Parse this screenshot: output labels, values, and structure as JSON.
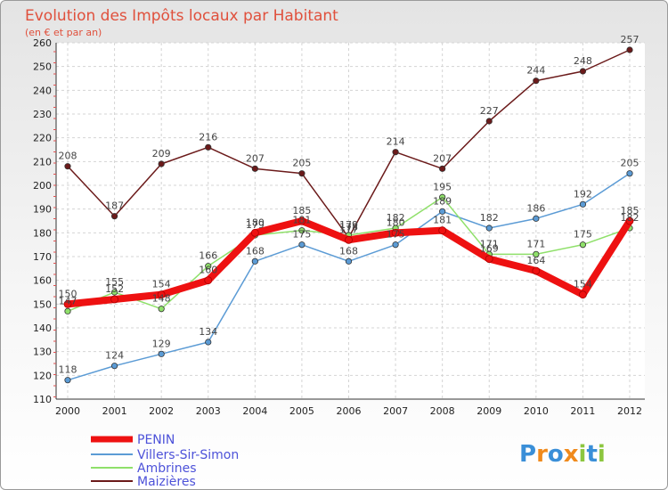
{
  "chart_data": {
    "type": "line",
    "title": "Evolution des Impôts locaux par Habitant",
    "subtitle": "(en € et par an)",
    "xlabel": "",
    "ylabel": "",
    "categories": [
      "2000",
      "2001",
      "2002",
      "2003",
      "2004",
      "2005",
      "2006",
      "2007",
      "2008",
      "2009",
      "2010",
      "2011",
      "2012"
    ],
    "ylim": [
      110,
      260
    ],
    "yticks": [
      110,
      120,
      130,
      140,
      150,
      160,
      170,
      180,
      190,
      200,
      210,
      220,
      230,
      240,
      250,
      260
    ],
    "series": [
      {
        "name": "Maizières",
        "color": "#6b1a1a",
        "values": [
          208,
          187,
          209,
          216,
          207,
          205,
          178,
          214,
          207,
          227,
          244,
          248,
          257
        ]
      },
      {
        "name": "Villers-Sir-Simon",
        "color": "#5b9bd5",
        "values": [
          118,
          124,
          129,
          134,
          168,
          175,
          168,
          175,
          189,
          182,
          186,
          192,
          205
        ]
      },
      {
        "name": "Ambrines",
        "color": "#8fe06a",
        "values": [
          147,
          155,
          148,
          166,
          179,
          181,
          179,
          182,
          195,
          171,
          171,
          175,
          182
        ]
      },
      {
        "name": "PENIN",
        "color": "#ee1111",
        "values": [
          150,
          152,
          154,
          160,
          180,
          185,
          177,
          180,
          181,
          169,
          164,
          154,
          185
        ]
      }
    ],
    "legend": [
      "PENIN",
      "Villers-Sir-Simon",
      "Ambrines",
      "Maizières"
    ],
    "legend_position": "bottom-left"
  },
  "logo": {
    "letters": [
      "P",
      "r",
      "o",
      "x",
      "i",
      "t",
      "i"
    ],
    "colors": [
      "#3a8fd8",
      "#f08a1c",
      "#3a8fd8",
      "#f08a1c",
      "#8cc63f",
      "#3a8fd8",
      "#8cc63f"
    ]
  }
}
